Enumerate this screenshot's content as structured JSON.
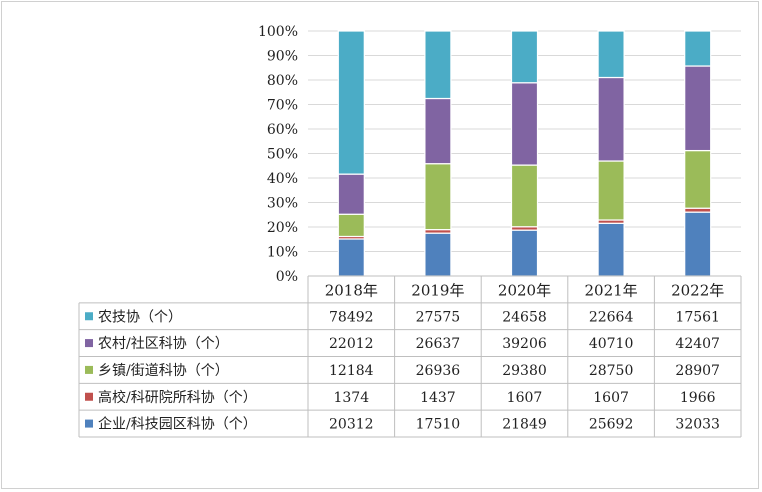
{
  "chart_data": {
    "type": "bar",
    "stacked": "percent",
    "categories": [
      "2018年",
      "2019年",
      "2020年",
      "2021年",
      "2022年"
    ],
    "y_ticks": [
      "0%",
      "10%",
      "20%",
      "30%",
      "40%",
      "50%",
      "60%",
      "70%",
      "80%",
      "90%",
      "100%"
    ],
    "ylim": [
      0,
      100
    ],
    "series": [
      {
        "name": "企业/科技园区科协（个）",
        "color": "#4f81bd",
        "values": [
          20312,
          17510,
          21849,
          25692,
          32033
        ]
      },
      {
        "name": "高校/科研院所科协（个）",
        "color": "#c0504d",
        "values": [
          1374,
          1437,
          1607,
          1607,
          1966
        ]
      },
      {
        "name": "乡镇/街道科协（个）",
        "color": "#9bbb59",
        "values": [
          12184,
          26936,
          29380,
          28750,
          28907
        ]
      },
      {
        "name": "农村/社区科协（个）",
        "color": "#8064a2",
        "values": [
          22012,
          26637,
          39206,
          40710,
          42407
        ]
      },
      {
        "name": "农技协（个）",
        "color": "#4bacc6",
        "values": [
          78492,
          27575,
          24658,
          22664,
          17561
        ]
      }
    ],
    "table_row_order": [
      4,
      3,
      2,
      1,
      0
    ],
    "legend": "data-table"
  }
}
